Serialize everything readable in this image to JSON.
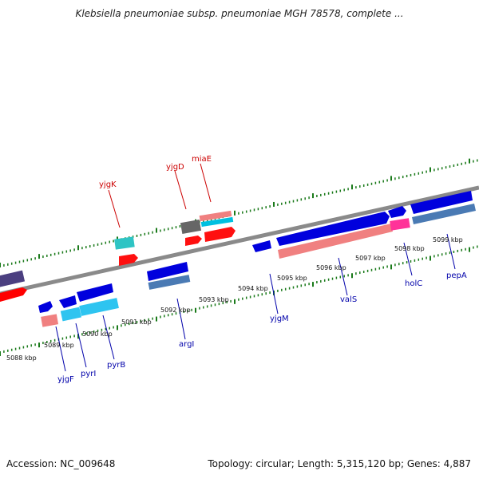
{
  "title": "Klebsiella pneumoniae subsp. pneumoniae MGH 78578, complete ...",
  "footer": {
    "accession": "Accession: NC_009648",
    "summary": "Topology: circular; Length: 5,315,120 bp; Genes: 4,887"
  },
  "colors": {
    "backbone": "#8a8a8a",
    "tick": "#1a7a1a",
    "gene_label_forward": "#cc0000",
    "gene_label_reverse": "#0000aa",
    "scale_label": "#111111"
  },
  "scale_labels": [
    "5088 kbp",
    "5089 kbp",
    "5090 kbp",
    "5091 kbp",
    "5092 kbp",
    "5093 kbp",
    "5094 kbp",
    "5095 kbp",
    "5096 kbp",
    "5097 kbp",
    "5098 kbp",
    "5099 kbp"
  ],
  "gene_labels": {
    "forward": [
      "yjgK",
      "yjgD",
      "miaE"
    ],
    "reverse": [
      "yjgF",
      "pyrI",
      "pyrB",
      "argI",
      "yjgM",
      "valS",
      "holC",
      "pepA"
    ]
  }
}
